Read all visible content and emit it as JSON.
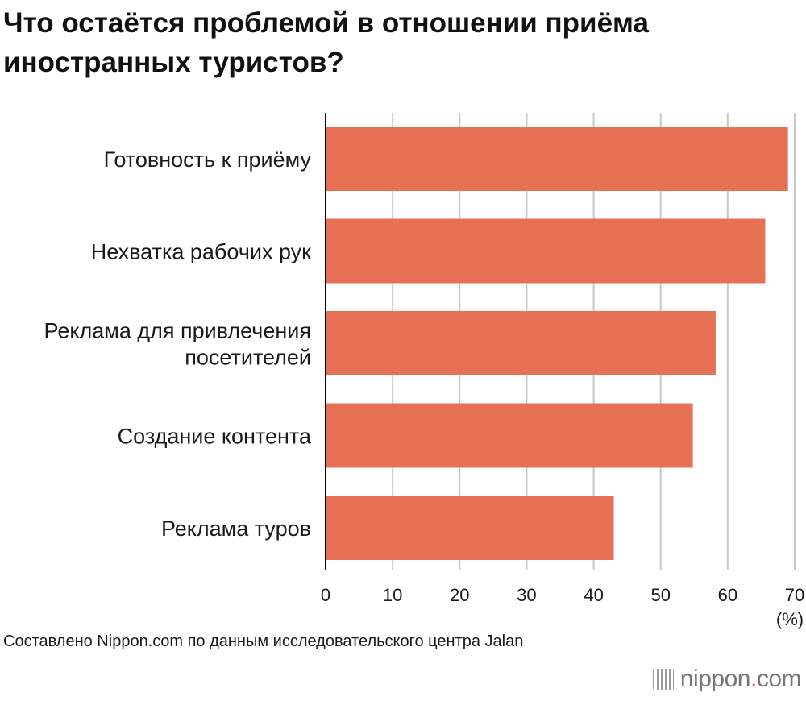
{
  "title": "Что остаётся проблемой в отношении приёма иностранных туристов?",
  "source": "Составлено Nippon.com по данным исследовательского центра Jalan",
  "logo": {
    "main": "nippon",
    "dot": ".",
    "suffix": "com",
    "mark_icon": "nippon-logo-icon"
  },
  "colors": {
    "bar": "#e67154",
    "grid": "#c8c8c8",
    "axis": "#000000",
    "text": "#1a1a1a"
  },
  "chart_data": {
    "type": "bar",
    "orientation": "horizontal",
    "categories": [
      [
        "Готовность к приёму"
      ],
      [
        "Нехватка рабочих рук"
      ],
      [
        "Реклама для привлечения",
        "посетителей"
      ],
      [
        "Создание контента"
      ],
      [
        "Реклама туров"
      ]
    ],
    "values": [
      69.0,
      65.6,
      58.2,
      54.8,
      43.0
    ],
    "xlim": [
      0,
      70
    ],
    "xticks": [
      0,
      10,
      20,
      30,
      40,
      50,
      60,
      70
    ],
    "xunit": "(%)",
    "grid": true,
    "legend": null
  }
}
